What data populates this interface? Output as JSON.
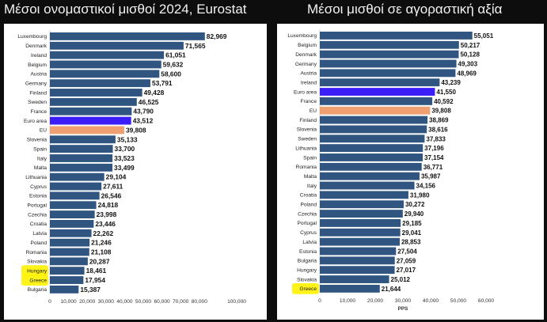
{
  "titles": {
    "left": "Μέσοι ονομαστικοί μισθοί 2024, Eurostat",
    "right": "Μέσοι μισθοί σε αγοραστική αξία"
  },
  "colors": {
    "bar": "#2f5580",
    "highlight_euro_area": "#3b1ef7",
    "highlight_eu": "#f0a070",
    "marker": "#fff200",
    "background": "#0d0d0d",
    "panel": "#ffffff"
  },
  "chart_data": [
    {
      "type": "bar",
      "orientation": "horizontal",
      "categories": [
        "Luxembourg",
        "Denmark",
        "Ireland",
        "Belgium",
        "Austria",
        "Germany",
        "Finland",
        "Sweden",
        "France",
        "Euro area",
        "EU",
        "Slovenia",
        "Spain",
        "Italy",
        "Malta",
        "Lithuania",
        "Cyprus",
        "Estonia",
        "Portugal",
        "Czechia",
        "Croatia",
        "Latvia",
        "Poland",
        "Romania",
        "Slovakia",
        "Hungary",
        "Greece",
        "Bulgaria"
      ],
      "values": [
        82969,
        71565,
        61051,
        59632,
        58600,
        53791,
        49428,
        46525,
        43790,
        43512,
        39808,
        35133,
        33700,
        33523,
        33499,
        29104,
        27611,
        26546,
        24818,
        23998,
        23446,
        22262,
        21246,
        21108,
        20287,
        18461,
        17954,
        15387
      ],
      "value_labels": [
        "82,969",
        "71,565",
        "61,051",
        "59,632",
        "58,600",
        "53,791",
        "49,428",
        "46,525",
        "43,790",
        "43,512",
        "39,808",
        "35,133",
        "33,700",
        "33,523",
        "33,499",
        "29,104",
        "27,611",
        "26,546",
        "24,818",
        "23,998",
        "23,446",
        "22,262",
        "21,246",
        "21,108",
        "20,287",
        "18,461",
        "17,954",
        "15,387"
      ],
      "highlights": {
        "Euro area": "highlight_euro_area",
        "EU": "highlight_eu"
      },
      "marked": [
        "Hungary",
        "Greece"
      ],
      "xlim": [
        0,
        100000
      ],
      "xticks": [
        0,
        10000,
        20000,
        30000,
        40000,
        50000,
        60000,
        70000,
        80000,
        100000
      ],
      "xtick_labels": [
        "0",
        "10,000",
        "20,000",
        "30,000",
        "40,000",
        "50,000",
        "60,000",
        "70,000",
        "80,000",
        "100,000"
      ],
      "xlabel": ""
    },
    {
      "type": "bar",
      "orientation": "horizontal",
      "categories": [
        "Luxembourg",
        "Belgium",
        "Denmark",
        "Germany",
        "Austria",
        "Ireland",
        "Euro area",
        "France",
        "EU",
        "Finland",
        "Slovenia",
        "Sweden",
        "Lithuania",
        "Spain",
        "Romania",
        "Malta",
        "Italy",
        "Croatia",
        "Poland",
        "Czechia",
        "Portugal",
        "Cyprus",
        "Latvia",
        "Estonia",
        "Bulgaria",
        "Hungary",
        "Slovakia",
        "Greece"
      ],
      "values": [
        55051,
        50217,
        50128,
        49303,
        48969,
        43239,
        41550,
        40592,
        39808,
        38869,
        38616,
        37833,
        37196,
        37154,
        36771,
        35987,
        34156,
        31980,
        30272,
        29940,
        29185,
        29041,
        28853,
        27504,
        27059,
        27017,
        25012,
        21644
      ],
      "value_labels": [
        "55,051",
        "50,217",
        "50,128",
        "49,303",
        "48,969",
        "43,239",
        "41,550",
        "40,592",
        "39,808",
        "38,869",
        "38,616",
        "37,833",
        "37,196",
        "37,154",
        "36,771",
        "35,987",
        "34,156",
        "31,980",
        "30,272",
        "29,940",
        "29,185",
        "29,041",
        "28,853",
        "27,504",
        "27,059",
        "27,017",
        "25,012",
        "21,644"
      ],
      "highlights": {
        "Euro area": "highlight_euro_area",
        "EU": "highlight_eu"
      },
      "marked": [
        "Greece"
      ],
      "xlim": [
        0,
        60000
      ],
      "xticks": [
        0,
        10000,
        20000,
        30000,
        40000,
        50000,
        60000
      ],
      "xtick_labels": [
        "0",
        "10,000",
        "20,000",
        "30,000",
        "40,000",
        "50,000",
        "60,000"
      ],
      "xlabel": "PPS"
    }
  ]
}
